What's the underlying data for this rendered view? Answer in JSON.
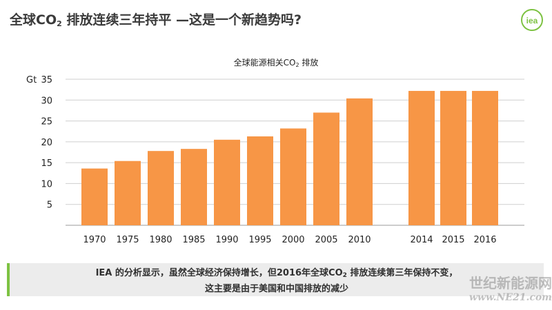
{
  "slide": {
    "title_prefix": "全球CO",
    "title_sub": "2",
    "title_suffix": " 排放连续三年持平 —这是一个新趋势吗?",
    "logo_text": "iea",
    "accent_color": "#7dc242"
  },
  "chart_data": {
    "type": "bar",
    "title_prefix": "全球能源相关CO",
    "title_sub": "2",
    "title_suffix": " 排放",
    "ylabel": "Gt",
    "ylim": [
      0,
      35
    ],
    "yticks": [
      5,
      10,
      15,
      20,
      25,
      30,
      35
    ],
    "grid": true,
    "bar_color": "#f79646",
    "categories": [
      "1970",
      "1975",
      "1980",
      "1985",
      "1990",
      "1995",
      "2000",
      "2005",
      "2010",
      "2014",
      "2015",
      "2016"
    ],
    "values": [
      13.6,
      15.4,
      17.8,
      18.3,
      20.5,
      21.3,
      23.2,
      27.0,
      30.4,
      32.2,
      32.2,
      32.2
    ]
  },
  "caption": {
    "line1_prefix": "IEA 的分析显示，虽然全球经济保持增长，但2016年全球CO",
    "line1_sub": "2",
    "line1_suffix": " 排放连续第三年保持不变，",
    "line2": "这主要是由于美国和中国排放的减少"
  },
  "watermark": {
    "line1": "世纪新能源网",
    "line2": "www.NE21.com"
  }
}
